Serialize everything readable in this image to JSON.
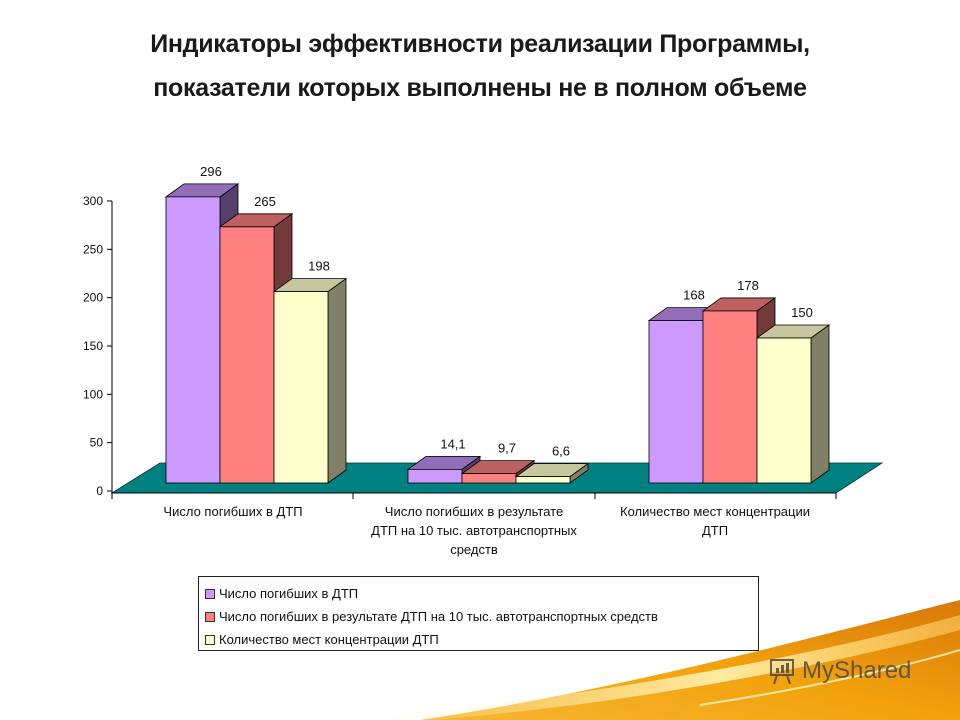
{
  "slide": {
    "title_line1": "Индикаторы эффективности  реализации Программы,",
    "title_line2": "показатели которых выполнены не в полном объеме"
  },
  "colors": {
    "series1": "#cc99ff",
    "series2": "#ff8080",
    "series3": "#ffffcc",
    "floor": "#008080",
    "background": "#ffffff"
  },
  "chart_data": {
    "type": "bar",
    "style": "3d-clustered-column",
    "title": "Индикаторы эффективности реализации Программы, показатели которых выполнены не в полном объеме",
    "categories": [
      "Число погибших в ДТП",
      "Число погибших в результате ДТП на 10 тыс. автотранспортных средств",
      "Количество мест концентрации ДТП"
    ],
    "category_labels_wrapped": [
      [
        "Число погибших в ДТП"
      ],
      [
        "Число погибших в результате",
        "ДТП на 10 тыс. автотранспортных",
        "средств"
      ],
      [
        "Количество мест концентрации",
        "ДТП"
      ]
    ],
    "series": [
      {
        "name": "Число погибших в ДТП",
        "values": [
          296,
          14.1,
          168
        ],
        "labels": [
          "296",
          "14,1",
          "168"
        ],
        "color": "#cc99ff"
      },
      {
        "name": "Число погибших в результате ДТП на 10 тыс. автотранспортных средств",
        "values": [
          265,
          9.7,
          178
        ],
        "labels": [
          "265",
          "9,7",
          "178"
        ],
        "color": "#ff8080"
      },
      {
        "name": "Количество мест концентрации ДТП",
        "values": [
          198,
          6.6,
          150
        ],
        "labels": [
          "198",
          "6,6",
          "150"
        ],
        "color": "#ffffcc"
      }
    ],
    "xlabel": "",
    "ylabel": "",
    "ylim": [
      0,
      300
    ],
    "yticks": [
      "0",
      "50",
      "100",
      "150",
      "200",
      "250",
      "300"
    ],
    "grid": false,
    "legend_position": "bottom"
  },
  "legend": {
    "items": [
      "Число погибших в ДТП",
      "Число погибших в результате ДТП на 10 тыс. автотранспортных средств",
      "Количество мест концентрации ДТП"
    ]
  },
  "watermark": {
    "text": "MyShared"
  }
}
